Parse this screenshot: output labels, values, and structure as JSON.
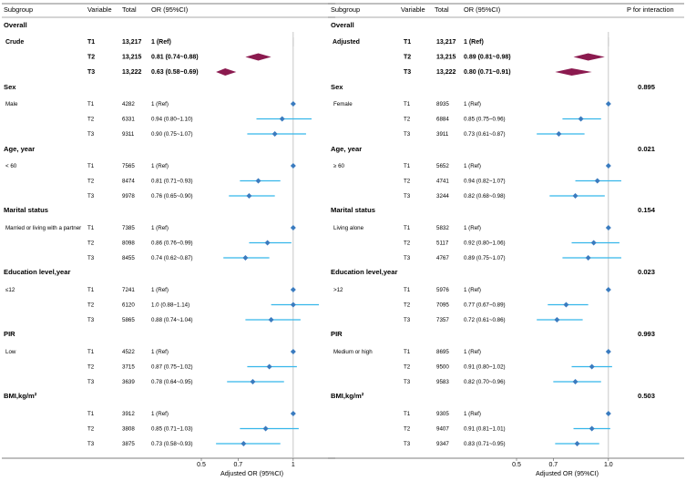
{
  "chart_data": [
    {
      "type": "forest",
      "panel": "left",
      "headers": {
        "subgroup": "Subgroup",
        "variable": "Variable",
        "total": "Total",
        "or": "OR (95%CI)"
      },
      "xlabel": "Adjusted OR (95%CI)",
      "x_ticks": [
        "0.5",
        "0.7",
        "1"
      ],
      "x_tick_values": [
        0.5,
        0.7,
        1.0
      ],
      "xlim": [
        0.5,
        1.1
      ],
      "sections": [
        {
          "title": "Overall",
          "subgroup": "Crude",
          "emphasis": true,
          "rows": [
            {
              "variable": "T1",
              "total": "13,217",
              "or_text": "1 (Ref)",
              "or": 1.0,
              "lo": 1.0,
              "hi": 1.0
            },
            {
              "variable": "T2",
              "total": "13,215",
              "or_text": "0.81 (0.74~0.88)",
              "or": 0.81,
              "lo": 0.74,
              "hi": 0.88
            },
            {
              "variable": "T3",
              "total": "13,222",
              "or_text": "0.63 (0.58~0.69)",
              "or": 0.63,
              "lo": 0.58,
              "hi": 0.69
            }
          ]
        },
        {
          "title": "Sex",
          "subgroup": "Male",
          "rows": [
            {
              "variable": "T1",
              "total": "4282",
              "or_text": "1 (Ref)",
              "or": 1.0,
              "lo": 1.0,
              "hi": 1.0
            },
            {
              "variable": "T2",
              "total": "6331",
              "or_text": "0.94 (0.80~1.10)",
              "or": 0.94,
              "lo": 0.8,
              "hi": 1.1
            },
            {
              "variable": "T3",
              "total": "9311",
              "or_text": "0.90 (0.75~1.07)",
              "or": 0.9,
              "lo": 0.75,
              "hi": 1.07
            }
          ]
        },
        {
          "title": "Age, year",
          "subgroup": "< 60",
          "rows": [
            {
              "variable": "T1",
              "total": "7565",
              "or_text": "1 (Ref)",
              "or": 1.0,
              "lo": 1.0,
              "hi": 1.0
            },
            {
              "variable": "T2",
              "total": "8474",
              "or_text": "0.81 (0.71~0.93)",
              "or": 0.81,
              "lo": 0.71,
              "hi": 0.93
            },
            {
              "variable": "T3",
              "total": "9978",
              "or_text": "0.76 (0.65~0.90)",
              "or": 0.76,
              "lo": 0.65,
              "hi": 0.9
            }
          ]
        },
        {
          "title": "Marital status",
          "subgroup": "Married or living with a partner",
          "rows": [
            {
              "variable": "T1",
              "total": "7385",
              "or_text": "1 (Ref)",
              "or": 1.0,
              "lo": 1.0,
              "hi": 1.0
            },
            {
              "variable": "T2",
              "total": "8098",
              "or_text": "0.86 (0.76~0.99)",
              "or": 0.86,
              "lo": 0.76,
              "hi": 0.99
            },
            {
              "variable": "T3",
              "total": "8455",
              "or_text": "0.74 (0.62~0.87)",
              "or": 0.74,
              "lo": 0.62,
              "hi": 0.87
            }
          ]
        },
        {
          "title": "Education level,year",
          "subgroup": "≤12",
          "rows": [
            {
              "variable": "T1",
              "total": "7241",
              "or_text": "1 (Ref)",
              "or": 1.0,
              "lo": 1.0,
              "hi": 1.0
            },
            {
              "variable": "T2",
              "total": "6120",
              "or_text": "1.0 (0.88~1.14)",
              "or": 1.0,
              "lo": 0.88,
              "hi": 1.14
            },
            {
              "variable": "T3",
              "total": "5865",
              "or_text": "0.88 (0.74~1.04)",
              "or": 0.88,
              "lo": 0.74,
              "hi": 1.04
            }
          ]
        },
        {
          "title": "PIR",
          "subgroup": "Low",
          "rows": [
            {
              "variable": "T1",
              "total": "4522",
              "or_text": "1 (Ref)",
              "or": 1.0,
              "lo": 1.0,
              "hi": 1.0
            },
            {
              "variable": "T2",
              "total": "3715",
              "or_text": "0.87 (0.75~1.02)",
              "or": 0.87,
              "lo": 0.75,
              "hi": 1.02
            },
            {
              "variable": "T3",
              "total": "3639",
              "or_text": "0.78 (0.64~0.95)",
              "or": 0.78,
              "lo": 0.64,
              "hi": 0.95
            }
          ]
        },
        {
          "title": "BMI,kg/m²",
          "subgroup": "",
          "rows": [
            {
              "variable": "T1",
              "total": "3912",
              "or_text": "1 (Ref)",
              "or": 1.0,
              "lo": 1.0,
              "hi": 1.0
            },
            {
              "variable": "T2",
              "total": "3808",
              "or_text": "0.85 (0.71~1.03)",
              "or": 0.85,
              "lo": 0.71,
              "hi": 1.03
            },
            {
              "variable": "T3",
              "total": "3875",
              "or_text": "0.73 (0.58~0.93)",
              "or": 0.73,
              "lo": 0.58,
              "hi": 0.93
            }
          ]
        }
      ]
    },
    {
      "type": "forest",
      "panel": "right",
      "headers": {
        "subgroup": "Subgroup",
        "variable": "Variable",
        "total": "Total",
        "or": "OR (95%CI)",
        "p": "P for interaction"
      },
      "xlabel": "Adjusted OR (95%CI)",
      "x_ticks": [
        "0.5",
        "0.7",
        "1.0"
      ],
      "x_tick_values": [
        0.5,
        0.7,
        1.0
      ],
      "xlim": [
        0.5,
        1.1
      ],
      "sections": [
        {
          "title": "Overall",
          "subgroup": "Adjusted",
          "emphasis": true,
          "p": "",
          "rows": [
            {
              "variable": "T1",
              "total": "13,217",
              "or_text": "1 (Ref)",
              "or": 1.0,
              "lo": 1.0,
              "hi": 1.0
            },
            {
              "variable": "T2",
              "total": "13,215",
              "or_text": "0.89 (0.81~0.98)",
              "or": 0.89,
              "lo": 0.81,
              "hi": 0.98
            },
            {
              "variable": "T3",
              "total": "13,222",
              "or_text": "0.80 (0.71~0.91)",
              "or": 0.8,
              "lo": 0.71,
              "hi": 0.91
            }
          ]
        },
        {
          "title": "Sex",
          "subgroup": "Female",
          "p": "0.895",
          "rows": [
            {
              "variable": "T1",
              "total": "8935",
              "or_text": "1 (Ref)",
              "or": 1.0,
              "lo": 1.0,
              "hi": 1.0
            },
            {
              "variable": "T2",
              "total": "6884",
              "or_text": "0.85 (0.75~0.96)",
              "or": 0.85,
              "lo": 0.75,
              "hi": 0.96
            },
            {
              "variable": "T3",
              "total": "3911",
              "or_text": "0.73 (0.61~0.87)",
              "or": 0.73,
              "lo": 0.61,
              "hi": 0.87
            }
          ]
        },
        {
          "title": "Age, year",
          "subgroup": "≥ 60",
          "p": "0.021",
          "rows": [
            {
              "variable": "T1",
              "total": "5652",
              "or_text": "1 (Ref)",
              "or": 1.0,
              "lo": 1.0,
              "hi": 1.0
            },
            {
              "variable": "T2",
              "total": "4741",
              "or_text": "0.94 (0.82~1.07)",
              "or": 0.94,
              "lo": 0.82,
              "hi": 1.07
            },
            {
              "variable": "T3",
              "total": "3244",
              "or_text": "0.82 (0.68~0.98)",
              "or": 0.82,
              "lo": 0.68,
              "hi": 0.98
            }
          ]
        },
        {
          "title": "Marital status",
          "subgroup": "Living alone",
          "p": "0.154",
          "rows": [
            {
              "variable": "T1",
              "total": "5832",
              "or_text": "1 (Ref)",
              "or": 1.0,
              "lo": 1.0,
              "hi": 1.0
            },
            {
              "variable": "T2",
              "total": "5117",
              "or_text": "0.92 (0.80~1.06)",
              "or": 0.92,
              "lo": 0.8,
              "hi": 1.06
            },
            {
              "variable": "T3",
              "total": "4767",
              "or_text": "0.89 (0.75~1.07)",
              "or": 0.89,
              "lo": 0.75,
              "hi": 1.07
            }
          ]
        },
        {
          "title": "Education level,year",
          "subgroup": ">12",
          "p": "0.023",
          "rows": [
            {
              "variable": "T1",
              "total": "5976",
              "or_text": "1 (Ref)",
              "or": 1.0,
              "lo": 1.0,
              "hi": 1.0
            },
            {
              "variable": "T2",
              "total": "7095",
              "or_text": "0.77 (0.67~0.89)",
              "or": 0.77,
              "lo": 0.67,
              "hi": 0.89
            },
            {
              "variable": "T3",
              "total": "7357",
              "or_text": "0.72 (0.61~0.86)",
              "or": 0.72,
              "lo": 0.61,
              "hi": 0.86
            }
          ]
        },
        {
          "title": "PIR",
          "subgroup": "Medium or high",
          "p": "0.993",
          "rows": [
            {
              "variable": "T1",
              "total": "8695",
              "or_text": "1 (Ref)",
              "or": 1.0,
              "lo": 1.0,
              "hi": 1.0
            },
            {
              "variable": "T2",
              "total": "9500",
              "or_text": "0.91 (0.80~1.02)",
              "or": 0.91,
              "lo": 0.8,
              "hi": 1.02
            },
            {
              "variable": "T3",
              "total": "9583",
              "or_text": "0.82 (0.70~0.96)",
              "or": 0.82,
              "lo": 0.7,
              "hi": 0.96
            }
          ]
        },
        {
          "title": "BMI,kg/m²",
          "subgroup": "",
          "p": "0.503",
          "rows": [
            {
              "variable": "T1",
              "total": "9305",
              "or_text": "1 (Ref)",
              "or": 1.0,
              "lo": 1.0,
              "hi": 1.0
            },
            {
              "variable": "T2",
              "total": "9407",
              "or_text": "0.91 (0.81~1.01)",
              "or": 0.91,
              "lo": 0.81,
              "hi": 1.01
            },
            {
              "variable": "T3",
              "total": "9347",
              "or_text": "0.83 (0.71~0.95)",
              "or": 0.83,
              "lo": 0.71,
              "hi": 0.95
            }
          ]
        }
      ]
    }
  ],
  "colors": {
    "point": "#3a7bbf",
    "ci": "#35b6ea",
    "emphasis": "#8b1a4f",
    "rule": "#555555",
    "ref_line": "#bbbbbb"
  }
}
